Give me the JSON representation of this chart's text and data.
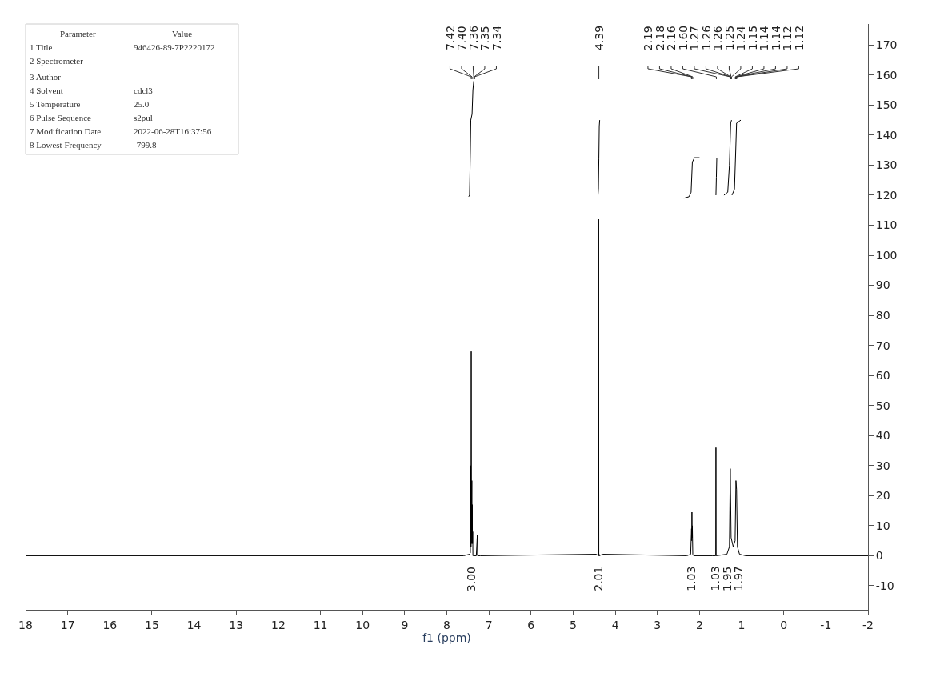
{
  "chart_data": {
    "type": "line",
    "xlabel": "f1 (ppm)",
    "xlim": [
      18,
      -2
    ],
    "ylim": [
      -18,
      177
    ],
    "xticks": [
      18,
      17,
      16,
      15,
      14,
      13,
      12,
      11,
      10,
      9,
      8,
      7,
      6,
      5,
      4,
      3,
      2,
      1,
      0,
      -1,
      -2
    ],
    "yticks": [
      -10,
      0,
      10,
      20,
      30,
      40,
      50,
      60,
      70,
      80,
      90,
      100,
      110,
      120,
      130,
      140,
      150,
      160,
      170
    ],
    "marker": "none",
    "line_style": "solid",
    "series": [
      {
        "color": "#000000",
        "x": [
          18,
          7.6,
          7.46,
          7.44,
          7.43,
          7.425,
          7.42,
          7.415,
          7.405,
          7.4,
          7.395,
          7.39,
          7.385,
          7.38,
          7.37,
          7.3,
          7.275,
          7.27,
          7.265,
          7.2,
          4.45,
          4.4,
          4.395,
          4.39,
          4.385,
          4.38,
          4.3,
          2.3,
          2.21,
          2.19,
          2.185,
          2.18,
          2.175,
          2.17,
          2.16,
          2.14,
          1.7,
          1.615,
          1.61,
          1.605,
          1.35,
          1.29,
          1.27,
          1.25,
          1.2,
          1.155,
          1.135,
          1.12,
          1.1,
          1.05,
          0.9,
          -2
        ],
        "values": [
          0,
          0,
          0.5,
          1,
          30,
          3,
          68,
          4,
          25,
          6,
          17,
          4,
          8,
          0,
          0,
          0,
          7,
          0,
          0,
          0,
          0.5,
          0,
          112,
          0,
          0.5,
          0,
          0.5,
          0,
          0.5,
          9,
          5,
          14.5,
          6,
          10,
          0.5,
          0,
          0,
          0,
          36,
          0,
          0.5,
          3,
          29,
          6,
          3,
          5,
          25,
          22,
          3,
          0.5,
          0,
          0
        ]
      },
      {
        "color": "#000000",
        "x": [
          7.48,
          7.46,
          7.44,
          7.43,
          7.4,
          7.38,
          7.36
        ],
        "values": [
          119.5,
          120,
          135,
          145,
          147,
          155,
          158
        ]
      },
      {
        "color": "#000000",
        "x": [
          4.41,
          4.4,
          4.39,
          4.38,
          4.37
        ],
        "values": [
          120,
          122,
          132,
          143,
          145
        ]
      },
      {
        "color": "#000000",
        "x": [
          2.37,
          2.25,
          2.2,
          2.17,
          2.12,
          2.0
        ],
        "values": [
          119,
          119.5,
          121,
          131,
          132.5,
          132.5
        ]
      },
      {
        "color": "#000000",
        "x": [
          1.61,
          1.6,
          1.59
        ],
        "values": [
          120,
          126,
          132.5
        ]
      },
      {
        "color": "#000000",
        "x": [
          1.42,
          1.33,
          1.29,
          1.26,
          1.24
        ],
        "values": [
          120,
          121,
          130,
          144,
          145
        ]
      },
      {
        "color": "#000000",
        "x": [
          1.23,
          1.17,
          1.14,
          1.12,
          1.02
        ],
        "values": [
          120,
          122,
          135,
          144,
          145
        ]
      }
    ],
    "annotations": [
      "Parameter\tValue",
      "1 Title\t946426-89-7P2220172",
      "2 Spectrometer",
      "3 Author",
      "4 Solvent\tcdcl3",
      "5 Temperature\t25.0",
      "6 Pulse Sequence\ts2pul",
      "7 Modification Date\t2022-06-28T16:37:56",
      "8 Lowest Frequency\t-799.8",
      "7.42",
      "7.40",
      "7.36",
      "7.35",
      "7.34",
      "4.39",
      "2.19",
      "2.18",
      "2.16",
      "1.60",
      "1.27",
      "1.26",
      "1.26",
      "1.25",
      "1.24",
      "1.15",
      "1.14",
      "1.14",
      "1.12",
      "1.12",
      "3.00",
      "2.01",
      "1.03",
      "1.03",
      "1.95",
      "1.97"
    ]
  }
}
